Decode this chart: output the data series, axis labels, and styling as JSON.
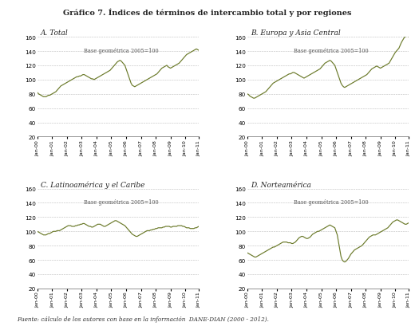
{
  "title": "Gráfico 7. Índices de términos de intercambio total y por regiones",
  "subtitle_A": "A. Total",
  "subtitle_B": "B. Europa y Asia Central",
  "subtitle_C": "C. Latinoamérica y el Caribe",
  "subtitle_D": "D. Norteamérica",
  "base_text": "Base geométrica 2005=100",
  "footer": "Fuente: cálculo de los autores con base en la información  DANE-DIAN (2000 - 2012).",
  "x_labels": [
    "Jan-00",
    "Jan-01",
    "Jan-02",
    "Jan-03",
    "Jan-04",
    "Jan-05",
    "Jan-06",
    "Jan-07",
    "Jan-08",
    "Jan-09",
    "Jan-10",
    "Jan-11"
  ],
  "ylim": [
    20,
    160
  ],
  "yticks": [
    20,
    40,
    60,
    80,
    100,
    120,
    140,
    160
  ],
  "line_color": "#6b7a2a",
  "bg_color": "#ffffff",
  "n_points": 132,
  "series_A": [
    82,
    80,
    79,
    78,
    77,
    76,
    76,
    76,
    77,
    78,
    78,
    79,
    80,
    81,
    82,
    83,
    85,
    87,
    89,
    91,
    92,
    93,
    94,
    95,
    96,
    97,
    98,
    99,
    100,
    101,
    102,
    103,
    104,
    104,
    105,
    105,
    106,
    107,
    107,
    106,
    105,
    104,
    103,
    102,
    101,
    101,
    100,
    101,
    102,
    103,
    104,
    105,
    106,
    107,
    108,
    109,
    110,
    111,
    112,
    113,
    115,
    117,
    119,
    121,
    123,
    125,
    126,
    127,
    126,
    124,
    122,
    120,
    115,
    110,
    105,
    100,
    95,
    92,
    91,
    90,
    91,
    92,
    93,
    94,
    95,
    96,
    97,
    98,
    99,
    100,
    101,
    102,
    103,
    104,
    105,
    106,
    107,
    108,
    110,
    112,
    114,
    116,
    117,
    118,
    119,
    120,
    118,
    117,
    116,
    117,
    118,
    119,
    120,
    121,
    122,
    123,
    125,
    127,
    129,
    131,
    133,
    135,
    136,
    137,
    138,
    139,
    140,
    141,
    142,
    143,
    142,
    141
  ],
  "series_B": [
    80,
    79,
    77,
    76,
    75,
    74,
    74,
    75,
    76,
    77,
    78,
    79,
    80,
    81,
    82,
    83,
    85,
    87,
    89,
    91,
    93,
    95,
    96,
    97,
    98,
    99,
    100,
    101,
    102,
    103,
    104,
    105,
    106,
    107,
    108,
    108,
    109,
    110,
    110,
    109,
    108,
    107,
    106,
    105,
    104,
    103,
    102,
    103,
    104,
    105,
    106,
    107,
    108,
    109,
    110,
    111,
    112,
    113,
    114,
    115,
    117,
    119,
    121,
    123,
    124,
    125,
    126,
    127,
    126,
    124,
    122,
    120,
    115,
    110,
    105,
    100,
    95,
    92,
    90,
    89,
    90,
    91,
    92,
    93,
    94,
    95,
    96,
    97,
    98,
    99,
    100,
    101,
    102,
    103,
    104,
    105,
    106,
    107,
    109,
    111,
    113,
    115,
    116,
    117,
    118,
    119,
    118,
    117,
    116,
    117,
    118,
    119,
    120,
    121,
    122,
    123,
    126,
    129,
    132,
    135,
    138,
    140,
    142,
    144,
    148,
    152,
    155,
    158,
    160,
    162,
    161,
    160
  ],
  "series_C": [
    100,
    99,
    98,
    97,
    96,
    95,
    95,
    95,
    96,
    97,
    97,
    98,
    99,
    100,
    100,
    100,
    101,
    101,
    101,
    102,
    103,
    104,
    105,
    106,
    107,
    108,
    108,
    108,
    107,
    107,
    107,
    108,
    108,
    109,
    109,
    110,
    110,
    111,
    111,
    110,
    109,
    108,
    107,
    107,
    106,
    106,
    107,
    108,
    109,
    110,
    110,
    110,
    109,
    108,
    107,
    107,
    108,
    109,
    110,
    111,
    112,
    113,
    114,
    115,
    115,
    114,
    113,
    112,
    111,
    110,
    109,
    108,
    106,
    104,
    102,
    100,
    98,
    96,
    95,
    94,
    93,
    93,
    94,
    95,
    96,
    97,
    98,
    99,
    100,
    101,
    101,
    101,
    102,
    102,
    103,
    103,
    104,
    104,
    105,
    105,
    105,
    105,
    106,
    106,
    107,
    107,
    107,
    107,
    106,
    106,
    107,
    107,
    107,
    107,
    108,
    108,
    108,
    108,
    107,
    107,
    106,
    105,
    105,
    105,
    104,
    104,
    104,
    104,
    105,
    105,
    106,
    107
  ],
  "series_D": [
    70,
    69,
    68,
    67,
    66,
    65,
    64,
    64,
    65,
    66,
    67,
    68,
    69,
    70,
    71,
    72,
    73,
    74,
    75,
    76,
    77,
    78,
    78,
    79,
    80,
    81,
    82,
    83,
    84,
    85,
    85,
    85,
    85,
    84,
    84,
    84,
    83,
    83,
    84,
    85,
    87,
    89,
    91,
    92,
    93,
    93,
    92,
    91,
    90,
    90,
    91,
    92,
    94,
    96,
    97,
    98,
    99,
    100,
    100,
    101,
    102,
    103,
    104,
    105,
    106,
    107,
    108,
    109,
    108,
    107,
    106,
    105,
    100,
    95,
    85,
    75,
    65,
    60,
    58,
    57,
    58,
    60,
    62,
    65,
    68,
    70,
    72,
    74,
    75,
    76,
    77,
    78,
    79,
    80,
    82,
    84,
    86,
    88,
    90,
    92,
    93,
    94,
    95,
    95,
    95,
    96,
    97,
    98,
    99,
    100,
    101,
    102,
    103,
    104,
    105,
    107,
    109,
    111,
    113,
    114,
    115,
    116,
    116,
    115,
    114,
    113,
    112,
    111,
    110,
    110,
    111,
    112
  ]
}
